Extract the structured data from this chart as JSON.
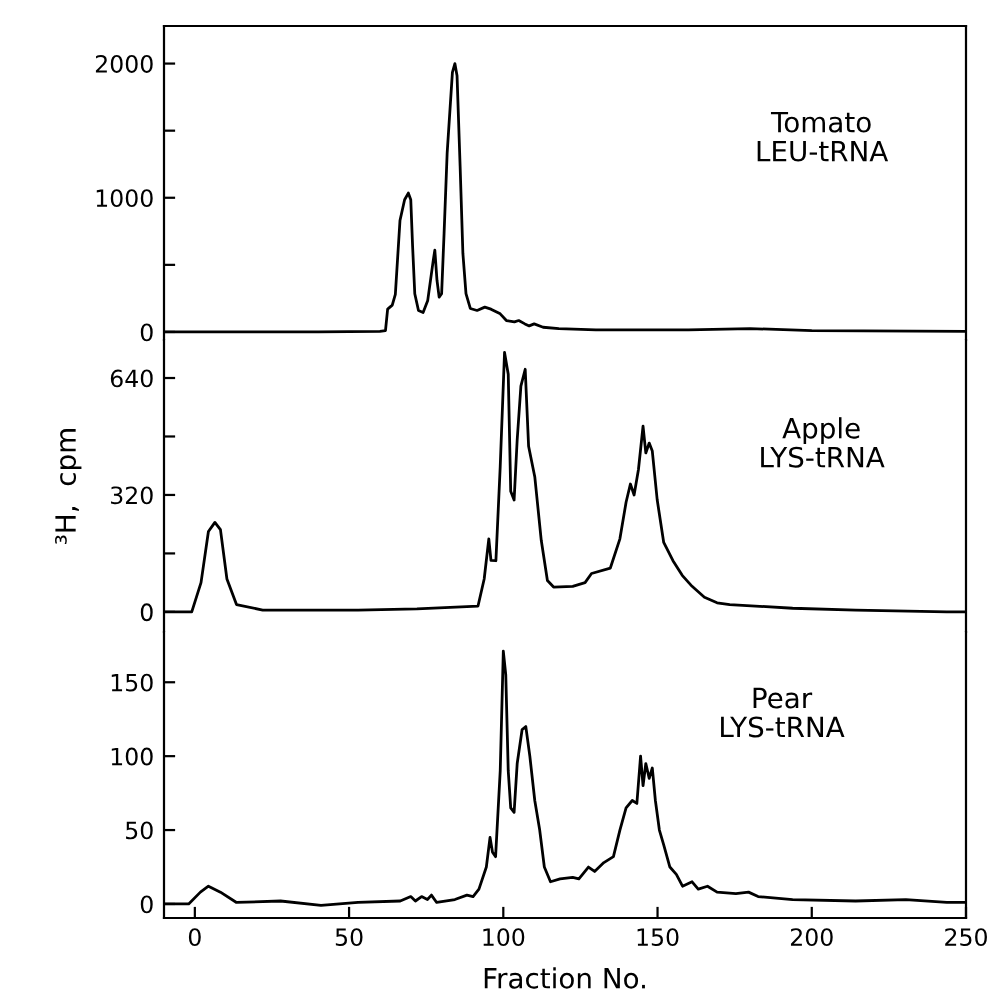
{
  "chart_data": [
    {
      "type": "line",
      "color": "#000000",
      "xlim": [
        -10,
        250
      ],
      "ylim": [
        -60,
        2280
      ],
      "yticks": [
        0,
        {
          "value": 500,
          "label": null
        },
        1000,
        {
          "value": 1500,
          "label": null
        },
        2000
      ],
      "tick_labels": "y",
      "grid": false,
      "annotations": [
        "Tomato\nLEU-tRNA"
      ],
      "x": [
        -10,
        40,
        60,
        61.8,
        62.5,
        64,
        65,
        66.5,
        68,
        69.2,
        70,
        70.6,
        71.3,
        72.5,
        74,
        75.5,
        77.3,
        77.8,
        78.5,
        79.2,
        80,
        80.8,
        81.8,
        83.5,
        84.3,
        85,
        86,
        86.9,
        87.9,
        89.3,
        91.5,
        94,
        96,
        99,
        101,
        103.6,
        105,
        107,
        108.4,
        110,
        112.9,
        118,
        130,
        160,
        180,
        200,
        250
      ],
      "values": [
        0,
        0,
        5,
        10,
        170,
        200,
        280,
        830,
        985,
        1035,
        985,
        635,
        285,
        160,
        145,
        235,
        535,
        610,
        385,
        260,
        285,
        735,
        1335,
        1935,
        2000,
        1910,
        1235,
        585,
        285,
        175,
        160,
        185,
        170,
        135,
        85,
        75,
        85,
        60,
        45,
        60,
        35,
        25,
        15,
        15,
        25,
        10,
        5
      ]
    },
    {
      "type": "line",
      "color": "#000000",
      "xlim": [
        -10,
        250
      ],
      "ylim": [
        -55,
        744
      ],
      "yticks": [
        0,
        {
          "value": 160,
          "label": null
        },
        320,
        {
          "value": 480,
          "label": null
        },
        640
      ],
      "tick_labels": "y",
      "grid": false,
      "ylabel": "³H,  cpm",
      "annotations": [
        "Apple\nLYS-tRNA"
      ],
      "x": [
        -10,
        -1,
        2,
        4.4,
        6.5,
        8.3,
        10.4,
        13.5,
        22,
        52.9,
        72,
        91.8,
        93.8,
        95.3,
        96,
        97.6,
        99,
        100.4,
        101.6,
        102.4,
        103.5,
        104.5,
        105.7,
        107.1,
        108.2,
        110.2,
        112.3,
        114.3,
        116.3,
        122.5,
        126.5,
        128.6,
        134.7,
        137.8,
        139.8,
        141.2,
        142.4,
        143.8,
        145.3,
        146.2,
        147.3,
        148.3,
        149.9,
        152,
        155,
        158,
        161.2,
        165.2,
        169.3,
        173.4,
        193.8,
        214.2,
        243.8,
        250
      ],
      "values": [
        0,
        0,
        80,
        220,
        245,
        225,
        90,
        20,
        5,
        5,
        8,
        16,
        90,
        200,
        141,
        140,
        398,
        710,
        650,
        330,
        306,
        471,
        618,
        664,
        453,
        370,
        196,
        86,
        68,
        70,
        80,
        105,
        120,
        200,
        300,
        350,
        320,
        389,
        508,
        435,
        462,
        440,
        306,
        190,
        140,
        100,
        70,
        40,
        25,
        20,
        10,
        5,
        0,
        0
      ]
    },
    {
      "type": "line",
      "color": "#000000",
      "xlim": [
        -10,
        250
      ],
      "ylim": [
        -9.5,
        184
      ],
      "yticks": [
        0,
        50,
        100,
        150
      ],
      "xticks": [
        0,
        50,
        100,
        150,
        200,
        250
      ],
      "grid": false,
      "xlabel": "Fraction No.",
      "annotations": [
        "Pear\nLYS-tRNA"
      ],
      "x": [
        -10,
        -2,
        1.8,
        4.4,
        8.3,
        13.5,
        27.8,
        40.9,
        52.9,
        66.6,
        70,
        71.5,
        73.5,
        75.4,
        76.7,
        78.4,
        84.3,
        88.2,
        90.2,
        92.1,
        94.5,
        95.7,
        96.5,
        97.5,
        99,
        100,
        100.8,
        101.6,
        102.4,
        103.5,
        104.5,
        106.1,
        107.3,
        108.6,
        110.2,
        111.8,
        113.3,
        115.3,
        118.4,
        122.5,
        124.5,
        127.6,
        129.6,
        132.6,
        135.7,
        137.8,
        139.8,
        141.8,
        143.3,
        144.5,
        145.3,
        146.2,
        147.3,
        148.3,
        149.3,
        150.6,
        152,
        154,
        156.1,
        158.1,
        161.2,
        163.2,
        166.2,
        169.3,
        175.4,
        179.5,
        182.6,
        193.8,
        214.2,
        230.5,
        243.8,
        250
      ],
      "values": [
        0,
        0,
        8,
        12,
        8,
        1,
        2,
        -1,
        1,
        2,
        5,
        2,
        5,
        3,
        6,
        1,
        3,
        6,
        5,
        10,
        25,
        45,
        35,
        32,
        90,
        171,
        155,
        90,
        65,
        62,
        95,
        118,
        120,
        100,
        70,
        50,
        25,
        15,
        17,
        18,
        17,
        25,
        22,
        28,
        32,
        50,
        65,
        70,
        68,
        100,
        80,
        95,
        85,
        92,
        70,
        50,
        40,
        25,
        20,
        12,
        15,
        10,
        12,
        8,
        7,
        8,
        5,
        3,
        2,
        3,
        1,
        1
      ]
    }
  ]
}
